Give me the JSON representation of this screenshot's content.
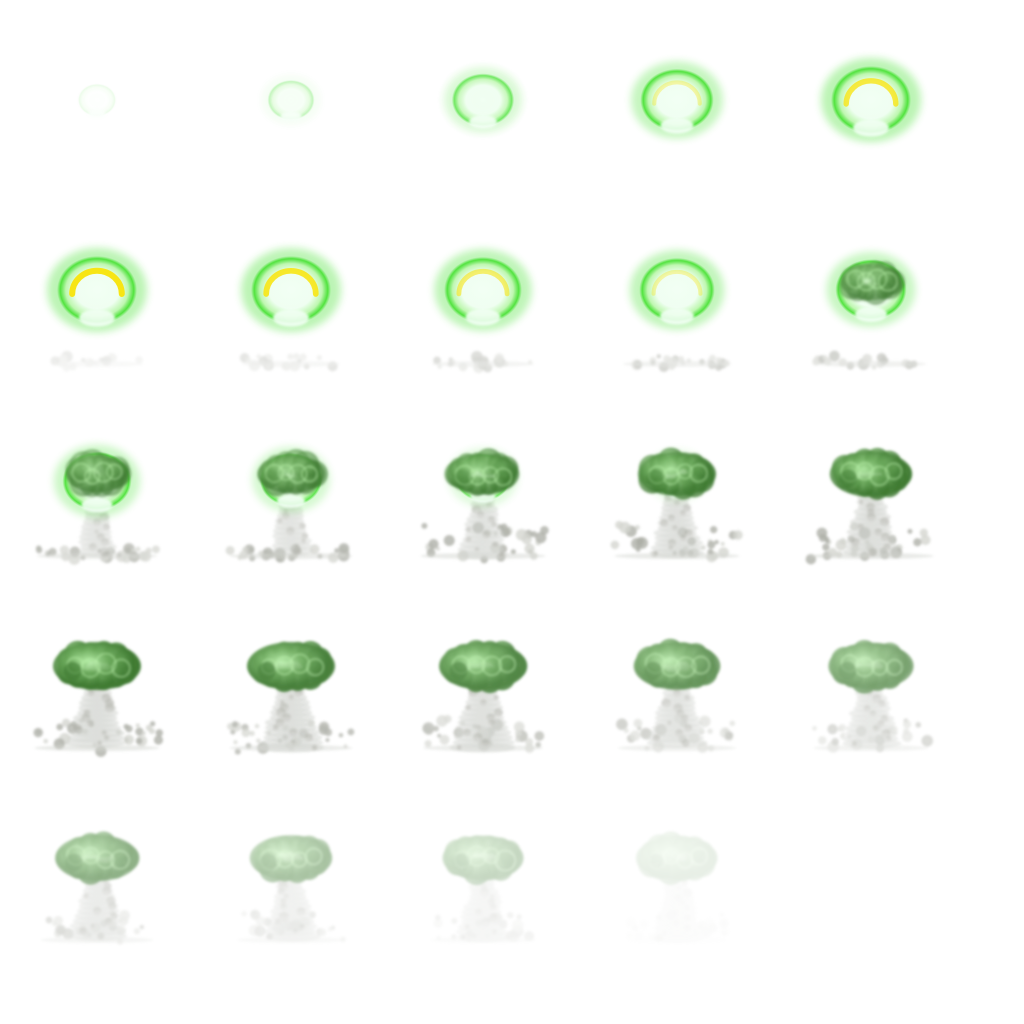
{
  "sprite_sheet": {
    "columns": 5,
    "rows": 5,
    "frame_count": 24,
    "background": "#ffffff",
    "colors": {
      "glow": "#3fe02a",
      "glow_light": "#bff7b0",
      "core": "#f2fff4",
      "ring": "#f7e514",
      "cloud_dark": "#3f7a32",
      "cloud_mid": "#6aa85a",
      "smoke": "#a5a79f",
      "smoke_light": "#cfd1cb"
    },
    "frames": [
      {
        "phase": "spark",
        "glow": 0.05,
        "ring": 0,
        "cap": 0,
        "stem": 0,
        "debris": 0,
        "opacity": 0.3
      },
      {
        "phase": "flash",
        "glow": 0.25,
        "ring": 0,
        "cap": 0,
        "stem": 0,
        "debris": 0,
        "opacity": 0.6
      },
      {
        "phase": "flash",
        "glow": 0.6,
        "ring": 0,
        "cap": 0,
        "stem": 0,
        "debris": 0,
        "opacity": 0.9
      },
      {
        "phase": "fireball",
        "glow": 0.85,
        "ring": 0.35,
        "cap": 0,
        "stem": 0,
        "debris": 0,
        "opacity": 1
      },
      {
        "phase": "fireball",
        "glow": 1,
        "ring": 0.8,
        "cap": 0,
        "stem": 0,
        "debris": 0,
        "opacity": 1
      },
      {
        "phase": "fireball",
        "glow": 1,
        "ring": 1,
        "cap": 0,
        "stem": 0,
        "debris": 0.25,
        "opacity": 1
      },
      {
        "phase": "fireball",
        "glow": 1,
        "ring": 0.9,
        "cap": 0,
        "stem": 0,
        "debris": 0.35,
        "opacity": 1
      },
      {
        "phase": "fireball",
        "glow": 0.95,
        "ring": 0.6,
        "cap": 0,
        "stem": 0,
        "debris": 0.45,
        "opacity": 1
      },
      {
        "phase": "fireball",
        "glow": 0.9,
        "ring": 0.35,
        "cap": 0,
        "stem": 0,
        "debris": 0.55,
        "opacity": 1
      },
      {
        "phase": "fireball",
        "glow": 0.8,
        "ring": 0,
        "cap": 0.05,
        "stem": 0,
        "debris": 0.6,
        "opacity": 1
      },
      {
        "phase": "rising",
        "glow": 0.75,
        "ring": 0,
        "cap": 0.1,
        "stem": 0.2,
        "debris": 0.8,
        "opacity": 1
      },
      {
        "phase": "rising",
        "glow": 0.6,
        "ring": 0,
        "cap": 0.25,
        "stem": 0.3,
        "debris": 0.85,
        "opacity": 1
      },
      {
        "phase": "rising",
        "glow": 0.45,
        "ring": 0,
        "cap": 0.45,
        "stem": 0.45,
        "debris": 0.9,
        "opacity": 1
      },
      {
        "phase": "mushroom",
        "glow": 0.3,
        "ring": 0,
        "cap": 0.65,
        "stem": 0.6,
        "debris": 0.9,
        "opacity": 1
      },
      {
        "phase": "mushroom",
        "glow": 0.15,
        "ring": 0,
        "cap": 0.8,
        "stem": 0.7,
        "debris": 0.9,
        "opacity": 1
      },
      {
        "phase": "mushroom",
        "glow": 0.05,
        "ring": 0,
        "cap": 1,
        "stem": 0.8,
        "debris": 0.9,
        "opacity": 1
      },
      {
        "phase": "mushroom",
        "glow": 0,
        "ring": 0,
        "cap": 1,
        "stem": 0.85,
        "debris": 0.85,
        "opacity": 0.95
      },
      {
        "phase": "mushroom",
        "glow": 0,
        "ring": 0,
        "cap": 1,
        "stem": 0.85,
        "debris": 0.8,
        "opacity": 0.9
      },
      {
        "phase": "dissipating",
        "glow": 0,
        "ring": 0,
        "cap": 0.95,
        "stem": 0.8,
        "debris": 0.75,
        "opacity": 0.8
      },
      {
        "phase": "dissipating",
        "glow": 0,
        "ring": 0,
        "cap": 0.9,
        "stem": 0.75,
        "debris": 0.7,
        "opacity": 0.7
      },
      {
        "phase": "dissipating",
        "glow": 0,
        "ring": 0,
        "cap": 0.85,
        "stem": 0.7,
        "debris": 0.65,
        "opacity": 0.6
      },
      {
        "phase": "dissipating",
        "glow": 0,
        "ring": 0,
        "cap": 0.8,
        "stem": 0.65,
        "debris": 0.55,
        "opacity": 0.45
      },
      {
        "phase": "dissipating",
        "glow": 0,
        "ring": 0,
        "cap": 0.75,
        "stem": 0.6,
        "debris": 0.5,
        "opacity": 0.3
      },
      {
        "phase": "fading",
        "glow": 0,
        "ring": 0,
        "cap": 0.7,
        "stem": 0.5,
        "debris": 0.4,
        "opacity": 0.12
      }
    ]
  }
}
